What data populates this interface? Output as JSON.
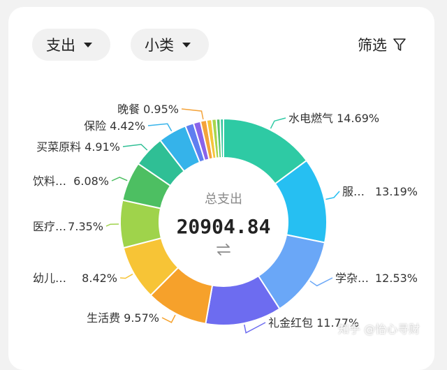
{
  "toolbar": {
    "type_select": "支出",
    "category_select": "小类",
    "filter_label": "筛选"
  },
  "summary": {
    "label": "总支出",
    "total": "20904.84"
  },
  "watermark": "知乎 @怡心寻财",
  "chart_data": {
    "type": "pie",
    "donut": true,
    "start_angle_deg": 0,
    "direction": "clockwise",
    "slices": [
      {
        "label": "水电燃气",
        "percent_text": "14.69%",
        "value": 14.69,
        "color": "#2ecaa4",
        "side": "right"
      },
      {
        "label": "服…",
        "percent_text": "13.19%",
        "value": 13.19,
        "color": "#26bff2",
        "side": "right"
      },
      {
        "label": "学杂…",
        "percent_text": "12.53%",
        "value": 12.53,
        "color": "#6aa7f7",
        "side": "right"
      },
      {
        "label": "礼金红包",
        "percent_text": "11.77%",
        "value": 11.77,
        "color": "#6d6cf0",
        "side": "right"
      },
      {
        "label": "生活费",
        "percent_text": "9.57%",
        "value": 9.57,
        "color": "#f6a12b",
        "side": "left"
      },
      {
        "label": "幼儿…",
        "percent_text": "8.42%",
        "value": 8.42,
        "color": "#f7c436",
        "side": "left"
      },
      {
        "label": "医疗…",
        "percent_text": "7.35%",
        "value": 7.35,
        "color": "#9fd34b",
        "side": "left"
      },
      {
        "label": "饮料…",
        "percent_text": "6.08%",
        "value": 6.08,
        "color": "#4dbf62",
        "side": "left"
      },
      {
        "label": "买菜原料",
        "percent_text": "4.91%",
        "value": 4.91,
        "color": "#2fbf95",
        "side": "left"
      },
      {
        "label": "保险",
        "percent_text": "4.42%",
        "value": 4.42,
        "color": "#35b3ea",
        "side": "left"
      },
      {
        "label": "",
        "percent_text": "",
        "value": 1.3,
        "color": "#5f7ef0",
        "side": "none"
      },
      {
        "label": "",
        "percent_text": "",
        "value": 1.1,
        "color": "#8a63ea",
        "side": "none"
      },
      {
        "label": "晚餐",
        "percent_text": "0.95%",
        "value": 0.95,
        "color": "#f4a33a",
        "side": "left"
      },
      {
        "label": "",
        "percent_text": "",
        "value": 0.8,
        "color": "#f5c53a",
        "side": "none"
      },
      {
        "label": "",
        "percent_text": "",
        "value": 0.7,
        "color": "#a8d64c",
        "side": "none"
      },
      {
        "label": "",
        "percent_text": "",
        "value": 0.6,
        "color": "#5ac36a",
        "side": "none"
      },
      {
        "label": "",
        "percent_text": "",
        "value": 0.5,
        "color": "#2fc49c",
        "side": "none"
      }
    ]
  }
}
